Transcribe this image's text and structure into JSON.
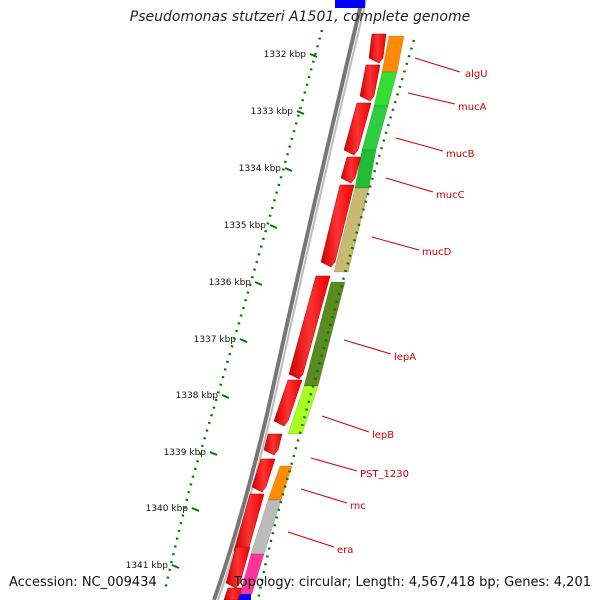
{
  "title": "Pseudomonas stutzeri A1501, complete genome",
  "accession": "Accession: NC_009434",
  "topology": "Topology: circular; Length: 4,567,418 bp; Genes: 4,201",
  "scale_labels": [
    "1332 kbp",
    "1333 kbp",
    "1334 kbp",
    "1335 kbp",
    "1336 kbp",
    "1337 kbp",
    "1338 kbp",
    "1339 kbp",
    "1340 kbp",
    "1341 kbp"
  ],
  "genes": [
    {
      "name": "algU",
      "color": "#ff8c00"
    },
    {
      "name": "mucA",
      "color": "#33dd33"
    },
    {
      "name": "mucB",
      "color": "#2ecc40"
    },
    {
      "name": "mucC",
      "color": "#22bb33"
    },
    {
      "name": "mucD",
      "color": "#c8b870"
    },
    {
      "name": "lepA",
      "color": "#5a8a20"
    },
    {
      "name": "lepB",
      "color": "#aaff22"
    },
    {
      "name": "PST_1230",
      "color": "#ff8c00"
    },
    {
      "name": "rnc",
      "color": "#bbbbbb"
    },
    {
      "name": "era",
      "color": "#ff3399"
    }
  ],
  "colors": {
    "cds": "#ff0000",
    "label": "#cc0000",
    "backbone": "#888888",
    "ticks": "#007700",
    "edge_blue": "#0000ff"
  }
}
